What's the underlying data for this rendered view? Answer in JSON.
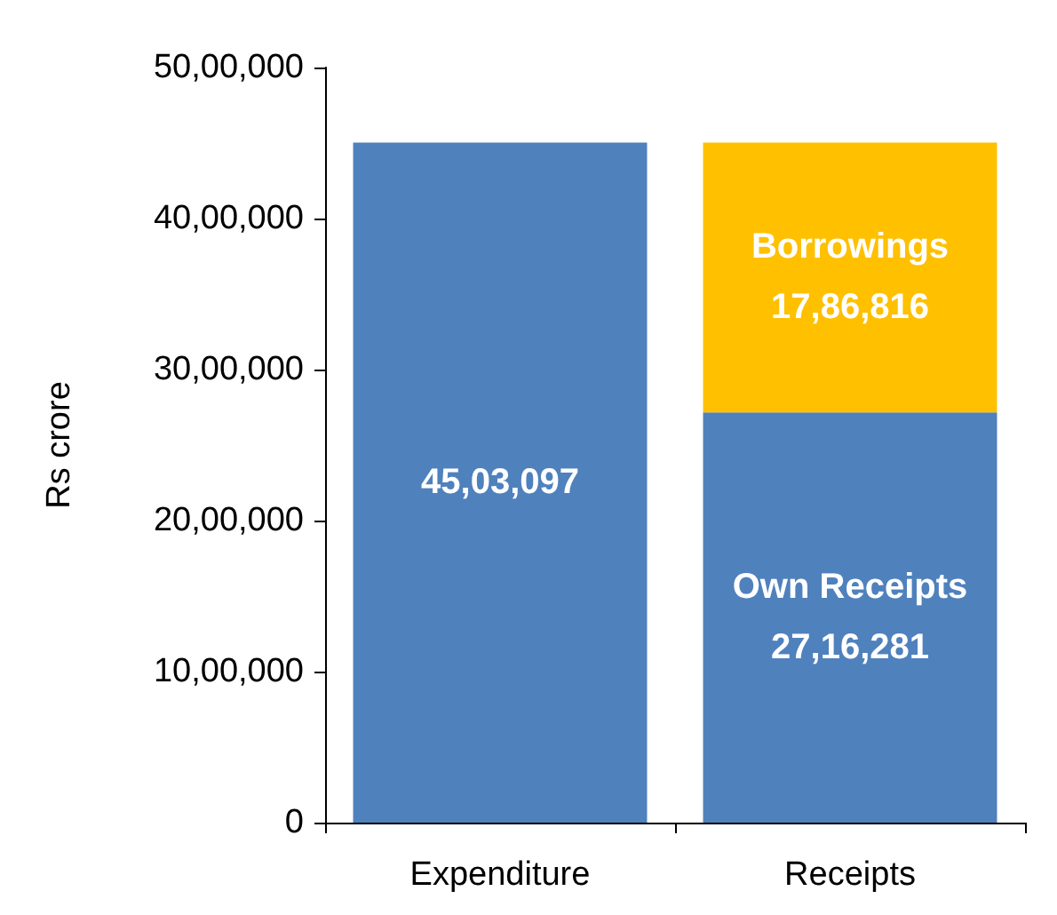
{
  "chart_data": {
    "type": "bar",
    "stacked": true,
    "ylabel": "Rs crore",
    "categories": [
      "Expenditure",
      "Receipts"
    ],
    "series": [
      {
        "color": "#4f81bd",
        "values": [
          4503097,
          null
        ],
        "value_labels": [
          "45,03,097",
          null
        ]
      },
      {
        "name": "Own Receipts",
        "color": "#4f81bd",
        "values": [
          null,
          2716281
        ],
        "value_labels": [
          null,
          "27,16,281"
        ]
      },
      {
        "name": "Borrowings",
        "color": "#ffc000",
        "values": [
          null,
          1786816
        ],
        "value_labels": [
          null,
          "17,86,816"
        ]
      }
    ],
    "ylim": [
      0,
      5000000
    ],
    "yticks": [
      {
        "value": 0,
        "label": "0"
      },
      {
        "value": 1000000,
        "label": "10,00,000"
      },
      {
        "value": 2000000,
        "label": "20,00,000"
      },
      {
        "value": 3000000,
        "label": "30,00,000"
      },
      {
        "value": 4000000,
        "label": "40,00,000"
      },
      {
        "value": 5000000,
        "label": "50,00,000"
      }
    ],
    "grid": false,
    "legend": false
  }
}
